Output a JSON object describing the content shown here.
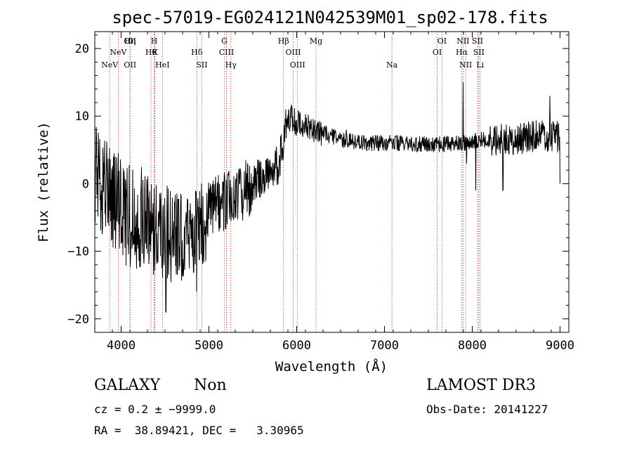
{
  "chart_data": {
    "type": "line",
    "title": "spec-57019-EG024121N042539M01_sp02-178.fits",
    "xlabel": "Wavelength (Å)",
    "ylabel": "Flux (relative)",
    "xlim": [
      3700,
      9100
    ],
    "ylim": [
      -22,
      22.5
    ],
    "xticks": [
      {
        "value": 4000,
        "label": "4000"
      },
      {
        "value": 5000,
        "label": "5000"
      },
      {
        "value": 6000,
        "label": "6000"
      },
      {
        "value": 7000,
        "label": "7000"
      },
      {
        "value": 8000,
        "label": "8000"
      },
      {
        "value": 9000,
        "label": "9000"
      }
    ],
    "yticks": [
      {
        "value": -20,
        "label": "−20"
      },
      {
        "value": -10,
        "label": "−10"
      },
      {
        "value": 0,
        "label": "0"
      },
      {
        "value": 10,
        "label": "10"
      },
      {
        "value": 20,
        "label": "20"
      }
    ],
    "grid": false,
    "line_color": "#000000",
    "marker_color": "#c0392b",
    "spectrum_anchors": [
      [
        3700,
        2
      ],
      [
        3850,
        -1
      ],
      [
        4000,
        -4
      ],
      [
        4200,
        -5
      ],
      [
        4400,
        -6
      ],
      [
        4550,
        -7
      ],
      [
        4700,
        -8
      ],
      [
        4900,
        -6
      ],
      [
        5100,
        -3
      ],
      [
        5300,
        -2
      ],
      [
        5500,
        0
      ],
      [
        5700,
        2
      ],
      [
        5800,
        3
      ],
      [
        5870,
        8
      ],
      [
        5930,
        10
      ],
      [
        6000,
        9
      ],
      [
        6100,
        8.5
      ],
      [
        6300,
        7.5
      ],
      [
        6500,
        6.5
      ],
      [
        6800,
        6
      ],
      [
        7100,
        6
      ],
      [
        7400,
        5.8
      ],
      [
        7700,
        5.8
      ],
      [
        7900,
        6
      ],
      [
        8100,
        6.5
      ],
      [
        8400,
        6.5
      ],
      [
        8700,
        7
      ],
      [
        9000,
        7
      ]
    ],
    "spectrum_features": [
      {
        "x": 4860,
        "y": -16
      },
      {
        "x": 4510,
        "y": -19
      },
      {
        "x": 5877,
        "y": 11
      },
      {
        "x": 6563,
        "y": 8
      },
      {
        "x": 7895,
        "y": 15
      },
      {
        "x": 7935,
        "y": 3
      },
      {
        "x": 8040,
        "y": -1
      },
      {
        "x": 8350,
        "y": -1
      },
      {
        "x": 8885,
        "y": 13
      },
      {
        "x": 9000,
        "y": 0
      }
    ],
    "lines": [
      {
        "x": 3869,
        "label": "NeV",
        "row": 3
      },
      {
        "x": 3967,
        "label": "NeV",
        "row": 2
      },
      {
        "x": 4102,
        "label": "Hη",
        "row": 1
      },
      {
        "x": 4101,
        "label": "OII",
        "row": 1
      },
      {
        "x": 4340,
        "label": "Hθ",
        "row": 2
      },
      {
        "x": 4102,
        "label": "OII",
        "row": 3
      },
      {
        "x": 4376,
        "label": "H",
        "row": 1
      },
      {
        "x": 4384,
        "label": "K",
        "row": 2
      },
      {
        "x": 4471,
        "label": "HeI",
        "row": 3
      },
      {
        "x": 4862,
        "label": "Hδ",
        "row": 2
      },
      {
        "x": 4920,
        "label": "SII",
        "row": 3
      },
      {
        "x": 5175,
        "label": "G",
        "row": 1
      },
      {
        "x": 5200,
        "label": "CIII",
        "row": 2
      },
      {
        "x": 5250,
        "label": "Hγ",
        "row": 3
      },
      {
        "x": 5850,
        "label": "Hβ",
        "row": 1
      },
      {
        "x": 5960,
        "label": "OIII",
        "row": 2
      },
      {
        "x": 6010,
        "label": "OIII",
        "row": 3
      },
      {
        "x": 6220,
        "label": "Mg",
        "row": 1
      },
      {
        "x": 7085,
        "label": "Na",
        "row": 3
      },
      {
        "x": 7600,
        "label": "OI",
        "row": 2
      },
      {
        "x": 7655,
        "label": "OI",
        "row": 1
      },
      {
        "x": 7880,
        "label": "Hα",
        "row": 2
      },
      {
        "x": 7895,
        "label": "NII",
        "row": 1
      },
      {
        "x": 7925,
        "label": "NII",
        "row": 3
      },
      {
        "x": 8060,
        "label": "SII",
        "row": 1
      },
      {
        "x": 8075,
        "label": "SII",
        "row": 2
      },
      {
        "x": 8090,
        "label": "Li",
        "row": 3
      }
    ]
  },
  "info": {
    "class": "GALAXY",
    "subclass": "Non",
    "survey": "LAMOST DR3",
    "cz": "cz = 0.2 ± −9999.0",
    "obs_date": "Obs-Date: 20141227",
    "coords": "RA =  38.89421, DEC =   3.30965"
  }
}
